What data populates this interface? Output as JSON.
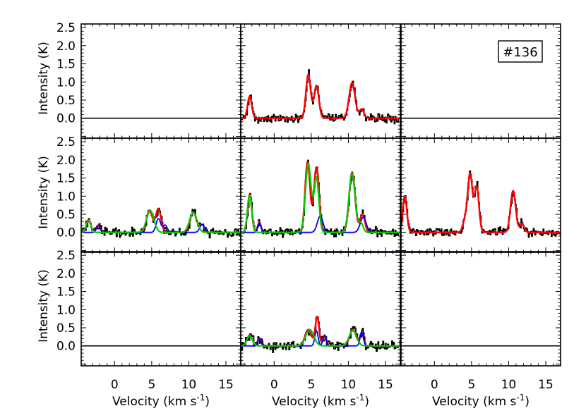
{
  "figure": {
    "tag": "#136"
  },
  "chart_data": {
    "type": "line",
    "grid": false,
    "layout": "3x3 panel grid",
    "xlabel_text": "Velocity (km s",
    "xlabel_sup": "-1",
    "xlabel_close": ")",
    "ylabel": "Intensity (K)",
    "xlim": [
      -4.5,
      17
    ],
    "ylim": [
      -0.55,
      2.6
    ],
    "xticks": [
      0,
      5,
      10,
      15
    ],
    "yticks": [
      0.0,
      0.5,
      1.0,
      1.5,
      2.0,
      2.5
    ],
    "ytick_labels": [
      "0.0",
      "0.5",
      "1.0",
      "1.5",
      "2.0",
      "2.5"
    ],
    "series_colors": {
      "observed": "#000000",
      "total_fit": "#ff0000",
      "component_1": "#00cc00",
      "component_2": "#0000ff"
    },
    "panels": [
      {
        "row": 0,
        "col": 0,
        "empty": true
      },
      {
        "row": 0,
        "col": 1,
        "empty": false,
        "noise": 0.06,
        "red": [
          [
            -3.3,
            0.6,
            0.28
          ],
          [
            4.6,
            1.2,
            0.32
          ],
          [
            5.7,
            0.9,
            0.32
          ],
          [
            10.5,
            0.98,
            0.4
          ],
          [
            11.8,
            0.25,
            0.3
          ]
        ],
        "green": [],
        "blue": []
      },
      {
        "row": 0,
        "col": 2,
        "empty": true
      },
      {
        "row": 1,
        "col": 0,
        "empty": false,
        "noise": 0.06,
        "red": [
          [
            -3.5,
            0.35,
            0.3
          ],
          [
            -2.2,
            0.2,
            0.25
          ],
          [
            4.7,
            0.6,
            0.4
          ],
          [
            5.9,
            0.65,
            0.35
          ],
          [
            10.6,
            0.55,
            0.45
          ],
          [
            11.8,
            0.2,
            0.3
          ]
        ],
        "green": [
          [
            -3.5,
            0.32,
            0.32
          ],
          [
            4.8,
            0.6,
            0.5
          ],
          [
            10.6,
            0.55,
            0.5
          ]
        ],
        "blue": [
          [
            -2.2,
            0.18,
            0.25
          ],
          [
            5.9,
            0.38,
            0.3
          ],
          [
            6.8,
            0.2,
            0.3
          ],
          [
            11.8,
            0.22,
            0.32
          ]
        ]
      },
      {
        "row": 1,
        "col": 1,
        "empty": false,
        "noise": 0.06,
        "red": [
          [
            -3.3,
            1.05,
            0.28
          ],
          [
            -2.0,
            0.28,
            0.22
          ],
          [
            4.5,
            1.95,
            0.33
          ],
          [
            5.7,
            1.8,
            0.35
          ],
          [
            10.5,
            1.65,
            0.4
          ],
          [
            11.9,
            0.5,
            0.32
          ]
        ],
        "green": [
          [
            -3.3,
            1.02,
            0.3
          ],
          [
            4.6,
            1.9,
            0.38
          ],
          [
            5.7,
            1.5,
            0.32
          ],
          [
            10.5,
            1.62,
            0.42
          ],
          [
            11.7,
            0.25,
            0.3
          ]
        ],
        "blue": [
          [
            -2.0,
            0.26,
            0.22
          ],
          [
            6.2,
            0.45,
            0.38
          ],
          [
            12.0,
            0.42,
            0.4
          ]
        ]
      },
      {
        "row": 1,
        "col": 2,
        "empty": false,
        "noise": 0.06,
        "red": [
          [
            -4.0,
            1.0,
            0.28
          ],
          [
            4.8,
            1.6,
            0.32
          ],
          [
            5.7,
            1.25,
            0.3
          ],
          [
            10.6,
            1.15,
            0.35
          ],
          [
            11.8,
            0.25,
            0.28
          ],
          [
            4.1,
            0.3,
            0.3
          ]
        ],
        "green": [],
        "blue": []
      },
      {
        "row": 2,
        "col": 0,
        "empty": true
      },
      {
        "row": 2,
        "col": 1,
        "empty": false,
        "noise": 0.07,
        "red": [
          [
            -3.3,
            0.3,
            0.35
          ],
          [
            -2.0,
            0.2,
            0.25
          ],
          [
            4.6,
            0.45,
            0.45
          ],
          [
            5.8,
            0.8,
            0.25
          ],
          [
            6.8,
            0.25,
            0.25
          ],
          [
            10.6,
            0.45,
            0.45
          ],
          [
            11.8,
            0.35,
            0.25
          ]
        ],
        "green": [
          [
            -3.3,
            0.28,
            0.38
          ],
          [
            4.8,
            0.45,
            0.55
          ],
          [
            10.6,
            0.42,
            0.5
          ]
        ],
        "blue": [
          [
            -2.0,
            0.2,
            0.22
          ],
          [
            5.7,
            0.42,
            0.22
          ],
          [
            6.8,
            0.3,
            0.22
          ],
          [
            11.8,
            0.38,
            0.22
          ]
        ]
      },
      {
        "row": 2,
        "col": 2,
        "empty": true
      }
    ]
  }
}
